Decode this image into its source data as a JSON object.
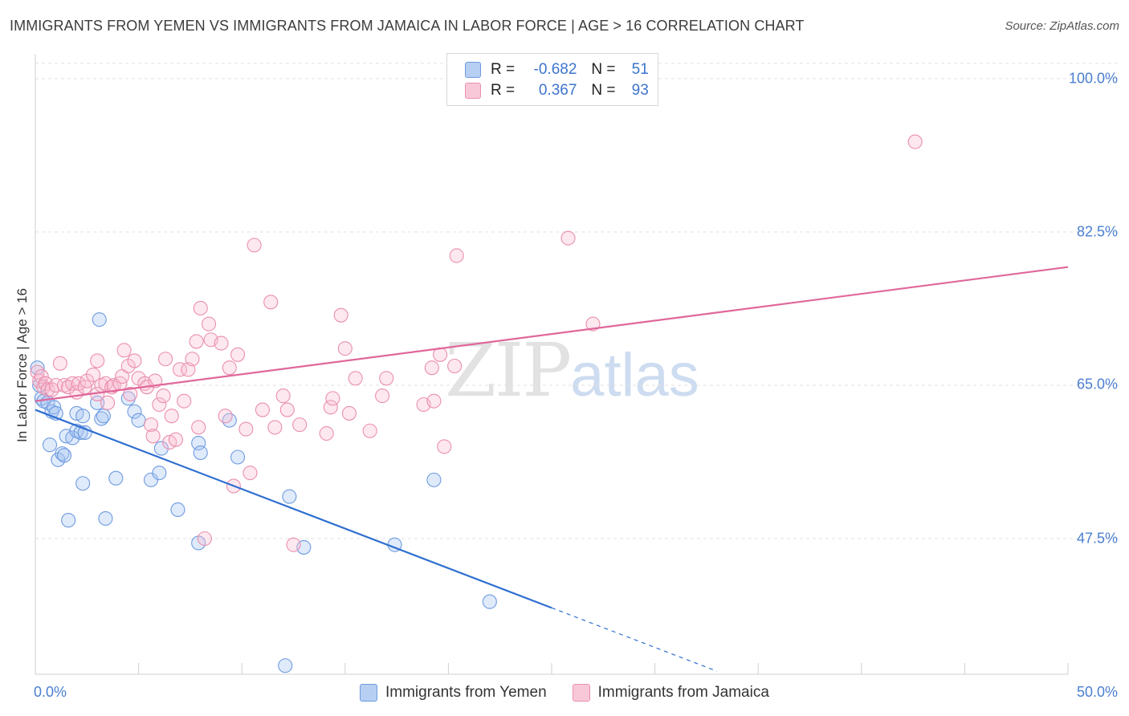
{
  "title": "IMMIGRANTS FROM YEMEN VS IMMIGRANTS FROM JAMAICA IN LABOR FORCE | AGE > 16 CORRELATION CHART",
  "source": "Source: ZipAtlas.com",
  "watermark": {
    "zip": "ZIP",
    "atlas": "atlas"
  },
  "legend": {
    "blue": {
      "r_label": "R =",
      "r_value": "-0.682",
      "n_label": "N =",
      "n_value": "51"
    },
    "pink": {
      "r_label": "R =",
      "r_value": "0.367",
      "n_label": "N =",
      "n_value": "93"
    }
  },
  "chart_data": {
    "type": "scatter",
    "title": "IMMIGRANTS FROM YEMEN VS IMMIGRANTS FROM JAMAICA IN LABOR FORCE | AGE > 16 CORRELATION CHART",
    "ylabel": "In Labor Force | Age > 16",
    "xlabel": "",
    "xlim": [
      0,
      50
    ],
    "ylim": [
      32,
      102
    ],
    "x_tick_labels": [
      "0.0%",
      "50.0%"
    ],
    "y_tick_labels": [
      "100.0%",
      "82.5%",
      "65.0%",
      "47.5%"
    ],
    "y_ticks": [
      100,
      82.5,
      65,
      47.5
    ],
    "grid": "horizontal dashed",
    "legend_placement": "top-center",
    "colors": {
      "yemen": "#6e9be0",
      "jamaica": "#ea8fae",
      "yemen_line": "#2f6fd0",
      "jamaica_line": "#e0679a"
    },
    "series": [
      {
        "name": "Immigrants from Yemen",
        "trend": {
          "x0": 0,
          "y0": 62.2,
          "x1": 25,
          "y1": 39.6,
          "dash_to_x": 33
        },
        "points": [
          [
            0.1,
            67.0
          ],
          [
            0.2,
            65.0
          ],
          [
            0.3,
            63.5
          ],
          [
            0.4,
            63.2
          ],
          [
            0.6,
            63.0
          ],
          [
            0.8,
            62.0
          ],
          [
            0.9,
            62.5
          ],
          [
            1.0,
            61.8
          ],
          [
            1.1,
            56.5
          ],
          [
            1.3,
            57.2
          ],
          [
            1.4,
            57.0
          ],
          [
            1.5,
            59.2
          ],
          [
            1.6,
            49.6
          ],
          [
            1.8,
            59.0
          ],
          [
            2.0,
            59.8
          ],
          [
            2.0,
            61.8
          ],
          [
            2.2,
            59.6
          ],
          [
            2.3,
            61.5
          ],
          [
            2.3,
            53.8
          ],
          [
            2.4,
            59.6
          ],
          [
            0.7,
            58.2
          ],
          [
            3.0,
            63.0
          ],
          [
            3.1,
            72.5
          ],
          [
            3.2,
            61.2
          ],
          [
            3.3,
            61.5
          ],
          [
            3.4,
            49.8
          ],
          [
            3.9,
            54.4
          ],
          [
            4.5,
            63.5
          ],
          [
            4.8,
            62.0
          ],
          [
            5.0,
            61.0
          ],
          [
            5.6,
            54.2
          ],
          [
            6.0,
            55.0
          ],
          [
            6.1,
            57.8
          ],
          [
            6.9,
            50.8
          ],
          [
            7.9,
            58.4
          ],
          [
            7.9,
            47.0
          ],
          [
            8.0,
            57.3
          ],
          [
            9.4,
            61.0
          ],
          [
            9.8,
            56.8
          ],
          [
            12.3,
            52.3
          ],
          [
            13.0,
            46.5
          ],
          [
            17.4,
            46.8
          ],
          [
            22.0,
            40.3
          ],
          [
            12.1,
            33.0
          ],
          [
            19.3,
            54.2
          ]
        ]
      },
      {
        "name": "Immigrants from Jamaica",
        "trend": {
          "x0": 0,
          "y0": 63.2,
          "x1": 50,
          "y1": 78.5
        },
        "points": [
          [
            0.1,
            66.5
          ],
          [
            0.2,
            65.5
          ],
          [
            0.3,
            66.0
          ],
          [
            0.4,
            64.8
          ],
          [
            0.5,
            65.2
          ],
          [
            0.6,
            64.5
          ],
          [
            0.8,
            64.5
          ],
          [
            1.0,
            65.0
          ],
          [
            1.2,
            67.5
          ],
          [
            1.4,
            65.0
          ],
          [
            1.6,
            64.8
          ],
          [
            1.8,
            65.2
          ],
          [
            2.0,
            64.2
          ],
          [
            2.1,
            65.2
          ],
          [
            2.4,
            64.8
          ],
          [
            2.5,
            65.5
          ],
          [
            2.8,
            66.2
          ],
          [
            3.0,
            64.0
          ],
          [
            3.0,
            67.8
          ],
          [
            3.2,
            65.0
          ],
          [
            3.4,
            65.2
          ],
          [
            3.5,
            63.0
          ],
          [
            3.7,
            64.8
          ],
          [
            3.8,
            65.0
          ],
          [
            4.1,
            65.2
          ],
          [
            4.2,
            66.0
          ],
          [
            4.3,
            69.0
          ],
          [
            4.5,
            67.2
          ],
          [
            4.6,
            64.0
          ],
          [
            4.8,
            67.8
          ],
          [
            5.0,
            65.8
          ],
          [
            5.3,
            65.2
          ],
          [
            5.4,
            64.8
          ],
          [
            5.6,
            60.5
          ],
          [
            5.7,
            59.2
          ],
          [
            5.8,
            65.5
          ],
          [
            6.0,
            62.8
          ],
          [
            6.2,
            63.8
          ],
          [
            6.3,
            68.0
          ],
          [
            6.5,
            58.5
          ],
          [
            6.6,
            61.5
          ],
          [
            6.8,
            58.8
          ],
          [
            7.0,
            66.8
          ],
          [
            7.2,
            63.2
          ],
          [
            7.4,
            66.8
          ],
          [
            7.6,
            68.0
          ],
          [
            7.8,
            70.0
          ],
          [
            7.9,
            60.2
          ],
          [
            8.0,
            73.8
          ],
          [
            8.2,
            47.5
          ],
          [
            8.4,
            72.0
          ],
          [
            8.5,
            70.2
          ],
          [
            9.0,
            69.8
          ],
          [
            9.2,
            61.5
          ],
          [
            9.4,
            67.0
          ],
          [
            9.6,
            53.5
          ],
          [
            9.8,
            68.5
          ],
          [
            10.2,
            60.0
          ],
          [
            10.4,
            55.0
          ],
          [
            10.6,
            81.0
          ],
          [
            11.0,
            62.2
          ],
          [
            11.4,
            74.5
          ],
          [
            11.6,
            60.2
          ],
          [
            12.0,
            63.8
          ],
          [
            12.2,
            62.2
          ],
          [
            12.5,
            46.8
          ],
          [
            12.8,
            60.5
          ],
          [
            14.1,
            59.5
          ],
          [
            14.3,
            62.5
          ],
          [
            14.4,
            63.5
          ],
          [
            14.8,
            73.0
          ],
          [
            15.0,
            69.2
          ],
          [
            15.2,
            61.8
          ],
          [
            15.5,
            65.8
          ],
          [
            16.2,
            59.8
          ],
          [
            16.8,
            63.8
          ],
          [
            17.0,
            65.8
          ],
          [
            18.8,
            62.8
          ],
          [
            19.2,
            67.0
          ],
          [
            19.3,
            63.2
          ],
          [
            19.6,
            68.5
          ],
          [
            19.8,
            58.0
          ],
          [
            20.3,
            67.2
          ],
          [
            20.4,
            79.8
          ],
          [
            25.8,
            81.8
          ],
          [
            27.0,
            72.0
          ],
          [
            42.6,
            92.8
          ]
        ]
      }
    ]
  }
}
